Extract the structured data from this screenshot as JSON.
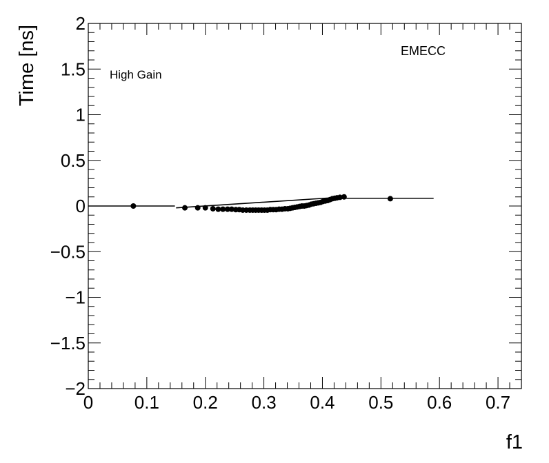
{
  "chart_data": {
    "type": "scatter",
    "xlabel": "f1",
    "ylabel": "Time [ns]",
    "xlim": [
      0,
      0.74
    ],
    "ylim": [
      -2,
      2
    ],
    "xticks": [
      0,
      0.1,
      0.2,
      0.3,
      0.4,
      0.5,
      0.6,
      0.7
    ],
    "xtick_labels": [
      "0",
      "0.1",
      "0.2",
      "0.3",
      "0.4",
      "0.5",
      "0.6",
      "0.7"
    ],
    "yticks": [
      -2,
      -1.5,
      -1,
      -0.5,
      0,
      0.5,
      1,
      1.5,
      2
    ],
    "ytick_labels": [
      "−2",
      "−1.5",
      "−1",
      "−0.5",
      "0",
      "0.5",
      "1",
      "1.5",
      "2"
    ],
    "grid": false,
    "annotations": {
      "gain": "High Gain",
      "region": "EMECC"
    },
    "points": {
      "x": [
        0.077,
        0.165,
        0.187,
        0.2,
        0.213,
        0.222,
        0.23,
        0.238,
        0.245,
        0.252,
        0.258,
        0.264,
        0.27,
        0.276,
        0.281,
        0.286,
        0.291,
        0.296,
        0.301,
        0.306,
        0.311,
        0.316,
        0.321,
        0.326,
        0.331,
        0.336,
        0.341,
        0.345,
        0.349,
        0.353,
        0.357,
        0.361,
        0.365,
        0.369,
        0.373,
        0.377,
        0.381,
        0.385,
        0.389,
        0.393,
        0.397,
        0.401,
        0.405,
        0.409,
        0.413,
        0.417,
        0.421,
        0.425,
        0.43,
        0.437,
        0.516
      ],
      "y": [
        0.0,
        -0.02,
        -0.02,
        -0.02,
        -0.03,
        -0.035,
        -0.035,
        -0.035,
        -0.035,
        -0.04,
        -0.04,
        -0.045,
        -0.045,
        -0.045,
        -0.045,
        -0.045,
        -0.045,
        -0.045,
        -0.045,
        -0.045,
        -0.04,
        -0.04,
        -0.04,
        -0.035,
        -0.035,
        -0.03,
        -0.03,
        -0.025,
        -0.02,
        -0.015,
        -0.01,
        -0.005,
        0.0,
        0.0,
        0.005,
        0.01,
        0.02,
        0.025,
        0.03,
        0.035,
        0.04,
        0.05,
        0.055,
        0.06,
        0.07,
        0.08,
        0.085,
        0.09,
        0.095,
        0.1,
        0.08
      ]
    },
    "fit_segments": [
      {
        "x": [
          0.0,
          0.148
        ],
        "y": [
          0.0,
          0.0
        ]
      },
      {
        "x": [
          0.15,
          0.44
        ],
        "y": [
          -0.02,
          0.1
        ]
      },
      {
        "x": [
          0.44,
          0.59
        ],
        "y": [
          0.085,
          0.085
        ]
      }
    ]
  }
}
